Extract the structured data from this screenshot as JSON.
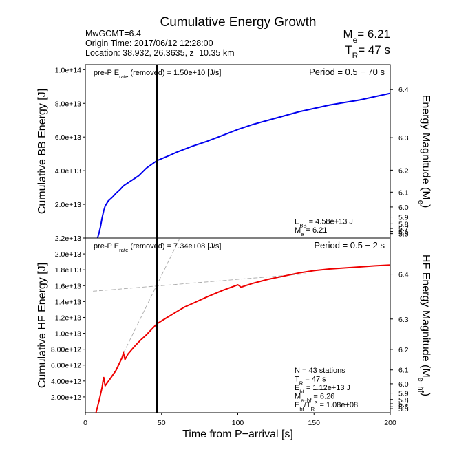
{
  "figure": {
    "title": "Cumulative Energy Growth",
    "info": [
      "MwGCMT=6.4",
      "Origin Time: 2017/06/12 12:28:00",
      "Location: 38.932, 26.3635, z=10.35 km"
    ],
    "summary": [
      [
        {
          "text": "M"
        },
        {
          "sub": "e"
        },
        {
          "text": "= 6.21"
        }
      ],
      [
        {
          "text": "T"
        },
        {
          "sub": "R"
        },
        {
          "text": "= 47 s"
        }
      ]
    ]
  },
  "chart_data": [
    {
      "type": "line",
      "y_label": "Cumulative BB Energy [J]",
      "y2_label": [
        {
          "text": "Energy Magnitude (M"
        },
        {
          "sub": "e"
        },
        {
          "text": ")"
        }
      ],
      "xlim": [
        0,
        200
      ],
      "ylim": [
        0,
        103000000000000.0
      ],
      "yticks": [
        {
          "value": 20000000000000.0,
          "label": "2.0e+13"
        },
        {
          "value": 40000000000000.0,
          "label": "4.0e+13"
        },
        {
          "value": 60000000000000.0,
          "label": "6.0e+13"
        },
        {
          "value": 80000000000000.0,
          "label": "8.0e+13"
        },
        {
          "value": 100000000000000.0,
          "label": "1.0e+14"
        }
      ],
      "y2scale": "magnitude",
      "y2ticks": [
        5.5,
        5.6,
        5.7,
        5.8,
        5.9,
        {
          "value": 6,
          "label": "6.0"
        },
        6.1,
        6.2,
        6.3,
        6.4
      ],
      "vline": 47,
      "series": [
        {
          "color": "#0000ee",
          "x": [
            8,
            9,
            10,
            11,
            12,
            13,
            15,
            18,
            20,
            23,
            25,
            30,
            35,
            40,
            47,
            55,
            60,
            70,
            80,
            90,
            100,
            110,
            120,
            130,
            140,
            150,
            160,
            170,
            180,
            190,
            200
          ],
          "values": [
            0,
            3000000000000.0,
            7000000000000.0,
            12000000000000.0,
            16000000000000.0,
            19000000000000.0,
            22000000000000.0,
            24500000000000.0,
            26500000000000.0,
            29000000000000.0,
            31000000000000.0,
            34000000000000.0,
            37000000000000.0,
            41500000000000.0,
            46000000000000.0,
            49000000000000.0,
            51000000000000.0,
            54500000000000.0,
            57500000000000.0,
            61000000000000.0,
            64500000000000.0,
            67500000000000.0,
            70000000000000.0,
            72500000000000.0,
            75000000000000.0,
            77000000000000.0,
            79000000000000.0,
            80500000000000.0,
            82000000000000.0,
            84000000000000.0,
            86000000000000.0
          ]
        }
      ],
      "note_left": [
        {
          "text": "pre-P E"
        },
        {
          "sub": "rate"
        },
        {
          "text": " (removed) = 1.50e+10 [J/s]"
        }
      ],
      "note_right": [
        {
          "text": "Period = 0.5 − 70 s"
        }
      ],
      "stats": [
        [
          {
            "text": "E"
          },
          {
            "sub": "BB"
          },
          {
            "text": " = 4.58e+13 J"
          }
        ],
        [
          {
            "text": "M"
          },
          {
            "sub": "e"
          },
          {
            "text": " = 6.21"
          }
        ]
      ]
    },
    {
      "type": "line",
      "y_label": "Cumulative HF Energy [J]",
      "y2_label": [
        {
          "text": "HF Energy Magnitude (M"
        },
        {
          "sub": "e−hf"
        },
        {
          "text": ")"
        }
      ],
      "x_label": "Time from P−arrival [s]",
      "xlim": [
        0,
        200
      ],
      "xticks": [
        0,
        50,
        100,
        150,
        200
      ],
      "ylim": [
        0,
        22000000000000.0
      ],
      "yticks": [
        {
          "value": 2000000000000.0,
          "label": "2.00e+12"
        },
        {
          "value": 4000000000000.0,
          "label": "4.00e+12"
        },
        {
          "value": 6000000000000.0,
          "label": "6.00e+12"
        },
        {
          "value": 8000000000000.0,
          "label": "8.00e+12"
        },
        {
          "value": 10000000000000.0,
          "label": "1.0e+13"
        },
        {
          "value": 12000000000000.0,
          "label": "1.2e+13"
        },
        {
          "value": 14000000000000.0,
          "label": "1.4e+13"
        },
        {
          "value": 16000000000000.0,
          "label": "1.6e+13"
        },
        {
          "value": 18000000000000.0,
          "label": "1.8e+13"
        },
        {
          "value": 20000000000000.0,
          "label": "2.0e+13"
        },
        {
          "value": 22000000000000.0,
          "label": "2.2e+13"
        }
      ],
      "y2scale": "magnitude",
      "y2ticks": [
        5.5,
        5.6,
        5.7,
        5.8,
        5.9,
        {
          "value": 6,
          "label": "6.0"
        },
        6.1,
        6.2,
        6.3,
        6.4
      ],
      "vline": 47,
      "series": [
        {
          "color": "#aaaaaa",
          "dashed": true,
          "x": [
            5,
            145
          ],
          "values": [
            15300000000000.0,
            17500000000000.0
          ]
        },
        {
          "color": "#aaaaaa",
          "dashed": true,
          "x": [
            25,
            62
          ],
          "values": [
            7500000000000.0,
            22000000000000.0
          ]
        },
        {
          "color": "#ee0000",
          "x": [
            7,
            9,
            11,
            12,
            13,
            16,
            20,
            24,
            25,
            26,
            28,
            32,
            36,
            40,
            44,
            47,
            52,
            58,
            65,
            72,
            80,
            90,
            100,
            101,
            102,
            105,
            110,
            120,
            130,
            140,
            150,
            160,
            175,
            190,
            200
          ],
          "values": [
            0,
            1500000000000.0,
            3200000000000.0,
            4500000000000.0,
            3400000000000.0,
            4200000000000.0,
            5300000000000.0,
            6900000000000.0,
            7500000000000.0,
            6700000000000.0,
            7400000000000.0,
            8300000000000.0,
            9100000000000.0,
            9800000000000.0,
            10600000000000.0,
            11200000000000.0,
            11800000000000.0,
            12500000000000.0,
            13300000000000.0,
            13900000000000.0,
            14600000000000.0,
            15400000000000.0,
            16100000000000.0,
            16000000000000.0,
            15800000000000.0,
            16000000000000.0,
            16300000000000.0,
            16800000000000.0,
            17200000000000.0,
            17600000000000.0,
            17900000000000.0,
            18100000000000.0,
            18300000000000.0,
            18500000000000.0,
            18600000000000.0
          ]
        }
      ],
      "note_left": [
        {
          "text": "pre-P E"
        },
        {
          "sub": "rate"
        },
        {
          "text": " (removed) = 7.34e+08 [J/s]"
        }
      ],
      "note_right": [
        {
          "text": "Period = 0.5 − 2 s"
        }
      ],
      "stats": [
        [
          {
            "text": "N = 43 stations"
          }
        ],
        [
          {
            "text": "T"
          },
          {
            "sub": "R"
          },
          {
            "text": " = 47  s"
          }
        ],
        [
          {
            "text": "E"
          },
          {
            "sub": "hf"
          },
          {
            "text": " = 1.12e+13 J"
          }
        ],
        [
          {
            "text": "M"
          },
          {
            "sub": "e−hf"
          },
          {
            "text": " = 6.26"
          }
        ],
        [
          {
            "text": "E"
          },
          {
            "sub": "hf"
          },
          {
            "text": "/T"
          },
          {
            "sub": "R"
          },
          {
            "sup": "3"
          },
          {
            "text": " =  1.08e+08"
          }
        ]
      ]
    }
  ]
}
